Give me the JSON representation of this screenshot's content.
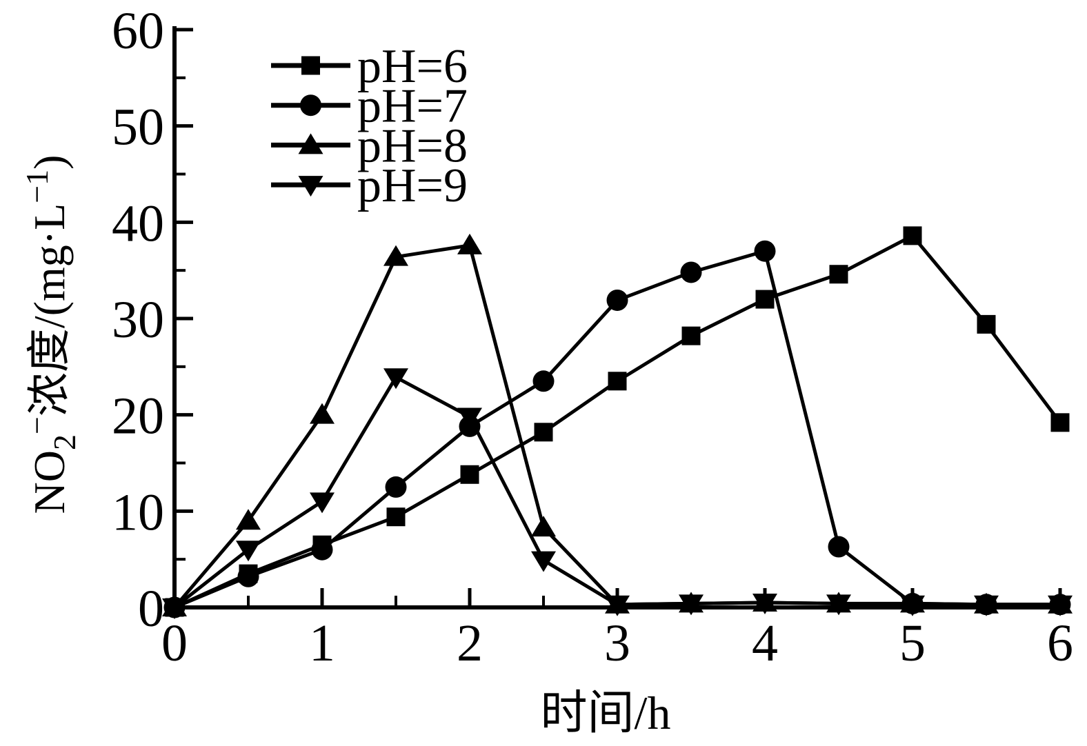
{
  "figure": {
    "background": "#ffffff",
    "ink": "#000000"
  },
  "chart_data": {
    "type": "line",
    "title": "",
    "xlabel": "时间/h",
    "ylabel": "NO₂⁻浓度/(mg·L⁻¹)",
    "ylabel_segments": [
      {
        "text": "NO",
        "style": "normal"
      },
      {
        "text": "2",
        "style": "sub"
      },
      {
        "text": "−",
        "style": "sup"
      },
      {
        "text": "浓度/(mg·L",
        "style": "normal"
      },
      {
        "text": "−1",
        "style": "sup"
      },
      {
        "text": ")",
        "style": "normal"
      }
    ],
    "xlim": [
      0,
      6
    ],
    "ylim": [
      0,
      60
    ],
    "x_major_ticks": [
      0,
      1,
      2,
      3,
      4,
      5,
      6
    ],
    "x_minor_ticks": [
      0.5,
      1.5,
      2.5,
      3.5,
      4.5,
      5.5
    ],
    "y_major_ticks": [
      0,
      10,
      20,
      30,
      40,
      50,
      60
    ],
    "y_minor_ticks": [
      5,
      15,
      25,
      35,
      45,
      55
    ],
    "grid": false,
    "legend_position": "upper-left-inside",
    "x": [
      0,
      0.5,
      1,
      1.5,
      2,
      2.5,
      3,
      3.5,
      4,
      4.5,
      5,
      5.5,
      6
    ],
    "series": [
      {
        "name": "pH=6",
        "marker": "square",
        "color": "#000000",
        "values": [
          0,
          3.5,
          6.5,
          9.4,
          13.8,
          18.2,
          23.5,
          28.2,
          32.0,
          34.6,
          38.6,
          29.4,
          19.2
        ]
      },
      {
        "name": "pH=7",
        "marker": "circle",
        "color": "#000000",
        "values": [
          0,
          3.2,
          6.0,
          12.5,
          18.8,
          23.5,
          31.9,
          34.8,
          37.0,
          6.3,
          0.4,
          0.3,
          0.3
        ]
      },
      {
        "name": "pH=8",
        "marker": "triangle-up",
        "color": "#000000",
        "values": [
          0,
          9.0,
          20.0,
          36.4,
          37.6,
          8.3,
          0.3,
          0.4,
          0.5,
          0.4,
          0.4,
          0.3,
          0.3
        ]
      },
      {
        "name": "pH=9",
        "marker": "triangle-down",
        "color": "#000000",
        "values": [
          0,
          6.0,
          11.0,
          23.9,
          19.8,
          4.9,
          0.3,
          0.4,
          0.5,
          0.4,
          0.3,
          0.3,
          0.3
        ]
      }
    ]
  }
}
